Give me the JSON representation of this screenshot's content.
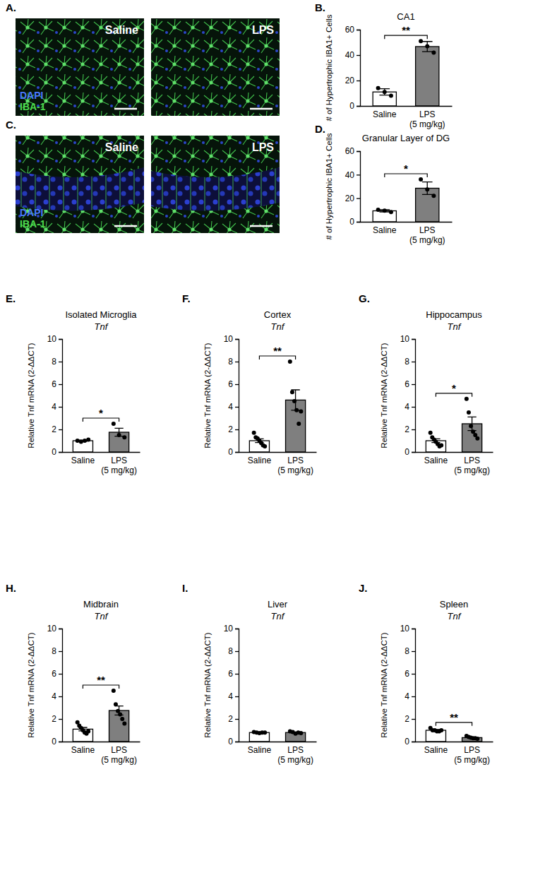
{
  "images": [
    {
      "panel": "A.",
      "labels": [
        "Saline",
        "LPS"
      ],
      "stains": [
        "DAPI",
        "IBA-1"
      ]
    },
    {
      "panel": "C.",
      "labels": [
        "Saline",
        "LPS"
      ],
      "stains": [
        "DAPI",
        "IBA-1"
      ]
    }
  ],
  "chart_data": [
    {
      "panel": "B.",
      "type": "bar",
      "title": "CA1",
      "y_label": "# of Hypertrophic IBA1+ Cells",
      "categories": [
        "Saline",
        "LPS\n(5 mg/kg)"
      ],
      "values": [
        11,
        46.7
      ],
      "errors": [
        2.5,
        4
      ],
      "points": [
        [
          14,
          11,
          8
        ],
        [
          51,
          47,
          42
        ]
      ],
      "colors": [
        "#ffffff",
        "#7f7f7f"
      ],
      "ylim": [
        0,
        60
      ],
      "yticks": [
        0,
        20,
        40,
        60
      ],
      "annotation": "**"
    },
    {
      "panel": "D.",
      "type": "bar",
      "title": "Granular Layer of DG",
      "y_label": "# of Hypertrophic IBA1+ Cells",
      "categories": [
        "Saline",
        "LPS\n(5 mg/kg)"
      ],
      "values": [
        9.3,
        28.5
      ],
      "errors": [
        0.9,
        5.3
      ],
      "points": [
        [
          10.2,
          9.5,
          8.3
        ],
        [
          36,
          27.5,
          22
        ]
      ],
      "colors": [
        "#ffffff",
        "#7f7f7f"
      ],
      "ylim": [
        0,
        60
      ],
      "yticks": [
        0,
        20,
        40,
        60
      ],
      "annotation": "*"
    },
    {
      "panel": "E.",
      "type": "bar",
      "title": "Isolated Microglia",
      "subtitle": "Tnf",
      "y_label": "Relative Tnf mRNA (2-ΔΔCT)",
      "categories": [
        "Saline",
        "LPS\n(5 mg/kg)"
      ],
      "values": [
        1.0,
        1.75
      ],
      "errors": [
        0.05,
        0.35
      ],
      "points": [
        [
          1.0,
          0.9,
          1.0,
          1.1
        ],
        [
          2.5,
          1.5,
          1.3
        ]
      ],
      "colors": [
        "#ffffff",
        "#7f7f7f"
      ],
      "ylim": [
        0,
        10
      ],
      "yticks": [
        0,
        2,
        4,
        6,
        8,
        10
      ],
      "annotation": "*"
    },
    {
      "panel": "F.",
      "type": "bar",
      "title": "Cortex",
      "subtitle": "Tnf",
      "y_label": "Relative Tnf mRNA (2-ΔΔCT)",
      "categories": [
        "Saline",
        "LPS\n(5 mg/kg)"
      ],
      "values": [
        1.0,
        4.6
      ],
      "errors": [
        0.17,
        0.9
      ],
      "points": [
        [
          1.7,
          1.3,
          1.2,
          1.0,
          0.8,
          0.6,
          0.5
        ],
        [
          8.0,
          5.3,
          4.5,
          3.7,
          2.5,
          3.6
        ]
      ],
      "colors": [
        "#ffffff",
        "#7f7f7f"
      ],
      "ylim": [
        0,
        10
      ],
      "yticks": [
        0,
        2,
        4,
        6,
        8,
        10
      ],
      "annotation": "**"
    },
    {
      "panel": "G.",
      "type": "bar",
      "title": "Hippocampus",
      "subtitle": "Tnf",
      "y_label": "Relative Tnf mRNA (2-ΔΔCT)",
      "categories": [
        "Saline",
        "LPS\n(5 mg/kg)"
      ],
      "values": [
        1.0,
        2.5
      ],
      "errors": [
        0.17,
        0.6
      ],
      "points": [
        [
          1.7,
          1.3,
          1.1,
          0.9,
          0.7,
          0.5,
          0.6
        ],
        [
          4.7,
          3.5,
          2.3,
          1.8,
          1.5,
          1.2
        ]
      ],
      "colors": [
        "#ffffff",
        "#7f7f7f"
      ],
      "ylim": [
        0,
        10
      ],
      "yticks": [
        0,
        2,
        4,
        6,
        8,
        10
      ],
      "annotation": "*"
    },
    {
      "panel": "H.",
      "type": "bar",
      "title": "Midbrain",
      "subtitle": "Tnf",
      "y_label": "Relative Tnf mRNA (2-ΔΔCT)",
      "categories": [
        "Saline",
        "LPS\n(5 mg/kg)"
      ],
      "values": [
        1.1,
        2.75
      ],
      "errors": [
        0.15,
        0.4
      ],
      "points": [
        [
          1.7,
          1.4,
          1.2,
          1.0,
          0.8,
          0.7,
          0.9
        ],
        [
          4.5,
          3.3,
          2.7,
          2.4,
          2.0,
          1.6
        ]
      ],
      "colors": [
        "#ffffff",
        "#7f7f7f"
      ],
      "ylim": [
        0,
        10
      ],
      "yticks": [
        0,
        2,
        4,
        6,
        8,
        10
      ],
      "annotation": "**"
    },
    {
      "panel": "I.",
      "type": "bar",
      "title": "Liver",
      "subtitle": "Tnf",
      "y_label": "Relative Tnf mRNA (2-ΔΔCT)",
      "categories": [
        "Saline",
        "LPS\n(5 mg/kg)"
      ],
      "values": [
        0.8,
        0.8
      ],
      "errors": [
        0.03,
        0.05
      ],
      "points": [
        [
          0.85,
          0.8,
          0.75,
          0.8,
          0.8
        ],
        [
          0.9,
          0.85,
          0.7,
          0.8,
          0.75
        ]
      ],
      "colors": [
        "#ffffff",
        "#7f7f7f"
      ],
      "ylim": [
        0,
        10
      ],
      "yticks": [
        0,
        2,
        4,
        6,
        8,
        10
      ]
    },
    {
      "panel": "J.",
      "type": "bar",
      "title": "Spleen",
      "subtitle": "Tnf",
      "y_label": "Relative Tnf mRNA (2-ΔΔCT)",
      "categories": [
        "Saline",
        "LPS\n(5 mg/kg)"
      ],
      "values": [
        1.0,
        0.35
      ],
      "errors": [
        0.07,
        0.04
      ],
      "points": [
        [
          1.2,
          1.0,
          1.0,
          0.9,
          0.9,
          1.0
        ],
        [
          0.5,
          0.4,
          0.35,
          0.3,
          0.3,
          0.25
        ]
      ],
      "colors": [
        "#ffffff",
        "#7f7f7f"
      ],
      "ylim": [
        0,
        10
      ],
      "yticks": [
        0,
        2,
        4,
        6,
        8,
        10
      ],
      "annotation": "**"
    }
  ]
}
